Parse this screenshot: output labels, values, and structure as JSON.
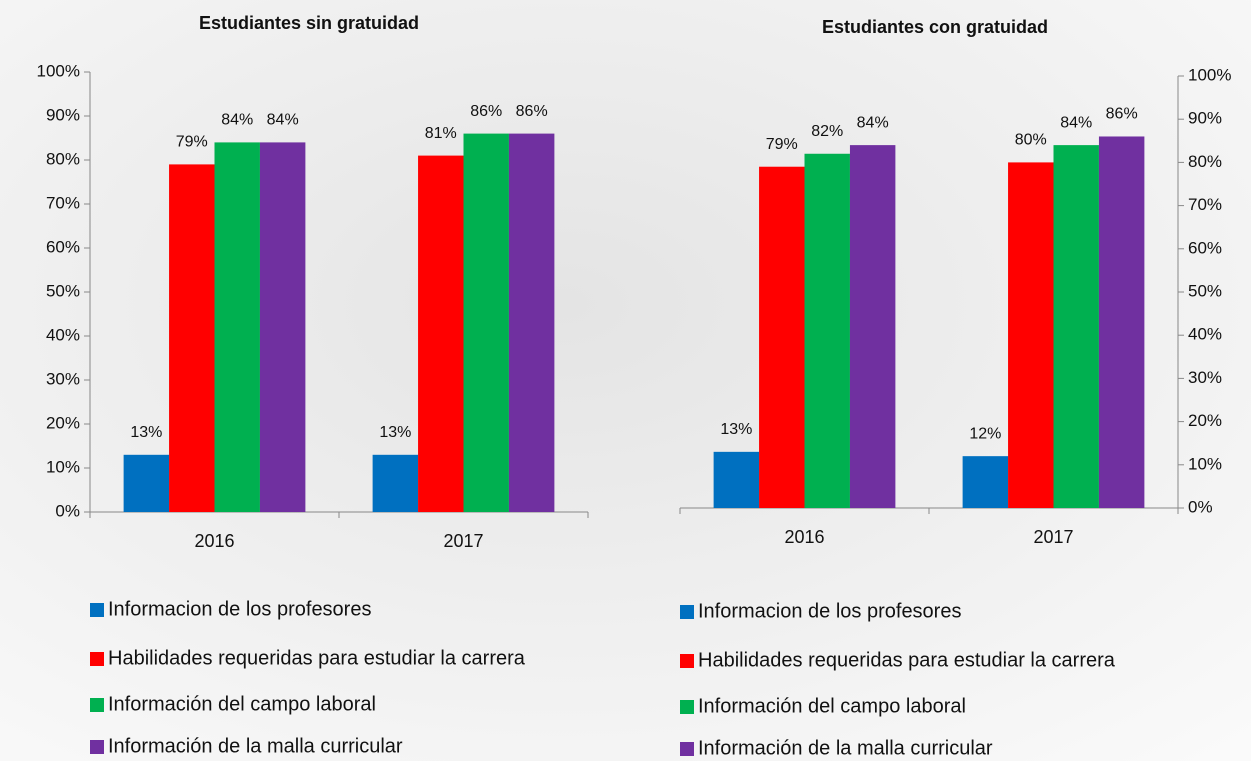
{
  "chart_data": [
    {
      "type": "bar",
      "title": "Estudiantes sin gratuidad",
      "yaxis_side": "left",
      "categories": [
        "2016",
        "2017"
      ],
      "series": [
        {
          "name": "Informacion de los profesores",
          "color": "#0070c0",
          "values": [
            13,
            13
          ],
          "value_labels": [
            "13%",
            "13%"
          ]
        },
        {
          "name": "Habilidades requeridas para estudiar la carrera",
          "color": "#ff0000",
          "values": [
            79,
            81
          ],
          "value_labels": [
            "79%",
            "81%"
          ]
        },
        {
          "name": "Información del campo laboral",
          "color": "#00b050",
          "values": [
            84,
            86
          ],
          "value_labels": [
            "84%",
            "86%"
          ]
        },
        {
          "name": "Información de la malla curricular",
          "color": "#7030a0",
          "values": [
            84,
            86
          ],
          "value_labels": [
            "84%",
            "86%"
          ]
        }
      ],
      "ylim": [
        0,
        100
      ],
      "yticks": [
        {
          "value": 0,
          "label": "0%"
        },
        {
          "value": 10,
          "label": "10%"
        },
        {
          "value": 20,
          "label": "20%"
        },
        {
          "value": 30,
          "label": "30%"
        },
        {
          "value": 40,
          "label": "40%"
        },
        {
          "value": 50,
          "label": "50%"
        },
        {
          "value": 60,
          "label": "60%"
        },
        {
          "value": 70,
          "label": "70%"
        },
        {
          "value": 80,
          "label": "80%"
        },
        {
          "value": 90,
          "label": "90%"
        },
        {
          "value": 100,
          "label": "100%"
        }
      ]
    },
    {
      "type": "bar",
      "title": "Estudiantes con gratuidad",
      "yaxis_side": "right",
      "categories": [
        "2016",
        "2017"
      ],
      "series": [
        {
          "name": "Informacion de los profesores",
          "color": "#0070c0",
          "values": [
            13,
            12
          ],
          "value_labels": [
            "13%",
            "12%"
          ]
        },
        {
          "name": "Habilidades requeridas para estudiar la carrera",
          "color": "#ff0000",
          "values": [
            79,
            80
          ],
          "value_labels": [
            "79%",
            "80%"
          ]
        },
        {
          "name": "Información del campo laboral",
          "color": "#00b050",
          "values": [
            82,
            84
          ],
          "value_labels": [
            "82%",
            "84%"
          ]
        },
        {
          "name": "Información de la malla curricular",
          "color": "#7030a0",
          "values": [
            84,
            86
          ],
          "value_labels": [
            "84%",
            "86%"
          ]
        }
      ],
      "ylim": [
        0,
        100
      ],
      "yticks": [
        {
          "value": 0,
          "label": "0%"
        },
        {
          "value": 10,
          "label": "10%"
        },
        {
          "value": 20,
          "label": "20%"
        },
        {
          "value": 30,
          "label": "30%"
        },
        {
          "value": 40,
          "label": "40%"
        },
        {
          "value": 50,
          "label": "50%"
        },
        {
          "value": 60,
          "label": "60%"
        },
        {
          "value": 70,
          "label": "70%"
        },
        {
          "value": 80,
          "label": "80%"
        },
        {
          "value": 90,
          "label": "90%"
        },
        {
          "value": 100,
          "label": "100%"
        }
      ]
    }
  ]
}
